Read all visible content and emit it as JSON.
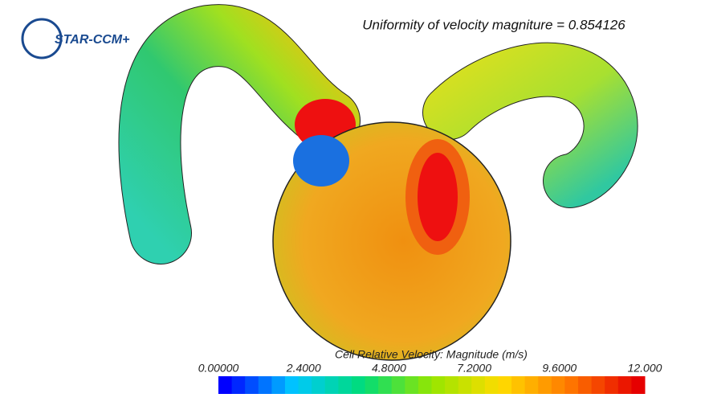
{
  "logo": {
    "text": "STAR-CCM+"
  },
  "annotation": "Uniformity of velocity magniture = 0.854126",
  "colorbar": {
    "title": "Cell Relative Velocity: Magnitude (m/s)",
    "ticks": [
      "0.00000",
      "2.4000",
      "4.8000",
      "7.2000",
      "9.6000",
      "12.000"
    ]
  }
}
